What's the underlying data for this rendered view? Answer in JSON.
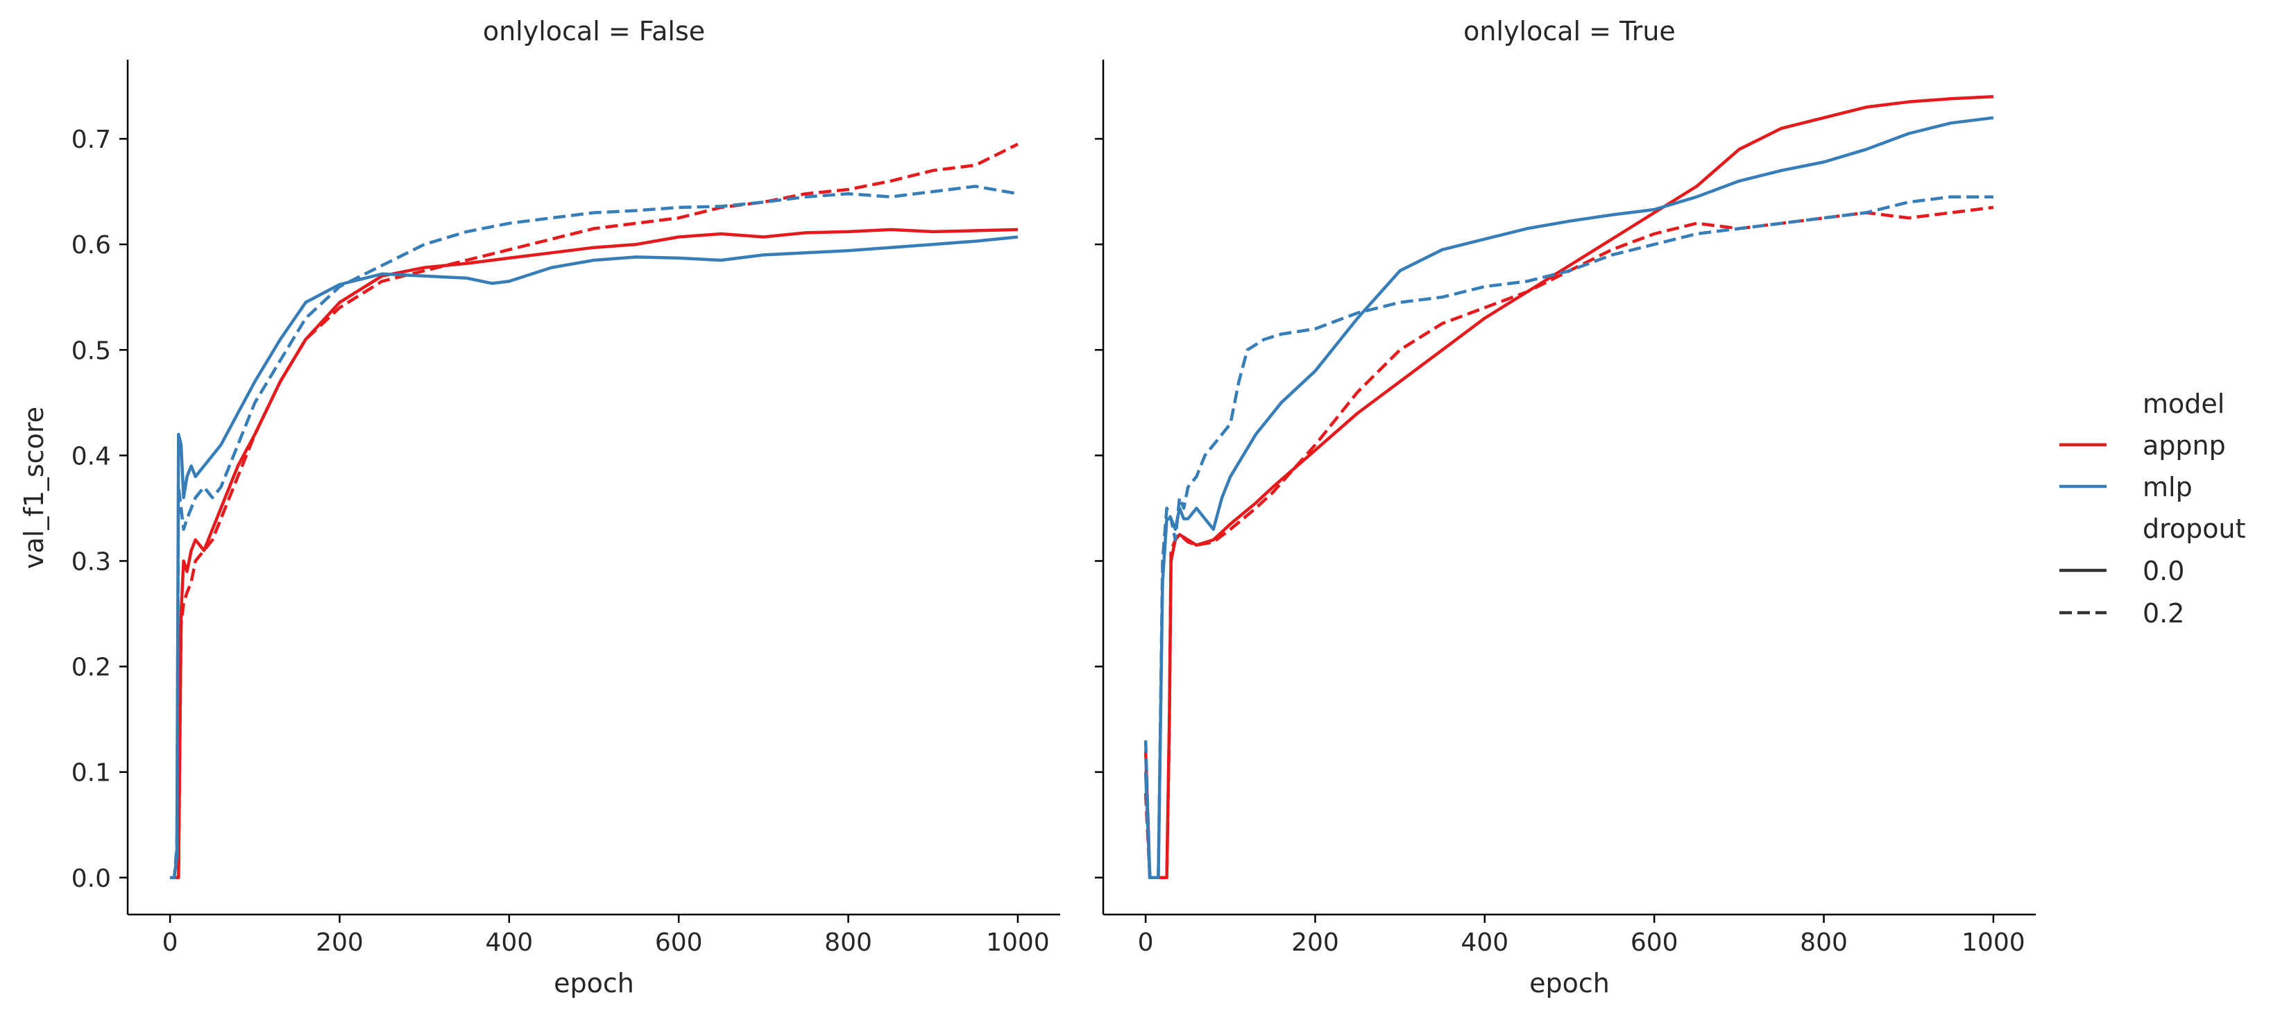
{
  "chart_data": [
    {
      "type": "line",
      "title": "onlylocal = False",
      "xlabel": "epoch",
      "ylabel": "val_f1_score",
      "xlim": [
        -50,
        1050
      ],
      "ylim": [
        -0.035,
        0.775
      ],
      "xticks": [
        0,
        200,
        400,
        600,
        800,
        1000
      ],
      "xtick_labels": [
        "0",
        "200",
        "400",
        "600",
        "800",
        "1000"
      ],
      "yticks": [
        0.0,
        0.1,
        0.2,
        0.3,
        0.4,
        0.5,
        0.6,
        0.7
      ],
      "ytick_labels": [
        "0.0",
        "0.1",
        "0.2",
        "0.3",
        "0.4",
        "0.5",
        "0.6",
        "0.7"
      ],
      "grid": false,
      "series": [
        {
          "name": "appnp",
          "dropout": "0.0",
          "color": "#e41a1c",
          "dash": "solid",
          "x": [
            0,
            8,
            10,
            13,
            16,
            20,
            25,
            30,
            40,
            50,
            60,
            80,
            100,
            130,
            160,
            200,
            250,
            300,
            350,
            400,
            450,
            500,
            550,
            600,
            650,
            700,
            750,
            800,
            850,
            900,
            950,
            1000
          ],
          "y": [
            0.0,
            0.0,
            0.0,
            0.25,
            0.3,
            0.29,
            0.31,
            0.32,
            0.31,
            0.33,
            0.35,
            0.39,
            0.42,
            0.47,
            0.51,
            0.545,
            0.57,
            0.578,
            0.582,
            0.587,
            0.592,
            0.597,
            0.6,
            0.607,
            0.61,
            0.607,
            0.611,
            0.612,
            0.614,
            0.612,
            0.613,
            0.614
          ]
        },
        {
          "name": "appnp",
          "dropout": "0.2",
          "color": "#e41a1c",
          "dash": "dashed",
          "x": [
            0,
            8,
            10,
            13,
            16,
            20,
            25,
            30,
            40,
            50,
            60,
            80,
            100,
            130,
            160,
            200,
            250,
            300,
            350,
            400,
            450,
            500,
            550,
            600,
            650,
            700,
            750,
            800,
            850,
            900,
            950,
            1000
          ],
          "y": [
            0.0,
            0.0,
            0.0,
            0.24,
            0.26,
            0.27,
            0.28,
            0.3,
            0.31,
            0.32,
            0.34,
            0.38,
            0.42,
            0.47,
            0.51,
            0.54,
            0.565,
            0.575,
            0.585,
            0.595,
            0.605,
            0.615,
            0.62,
            0.625,
            0.635,
            0.64,
            0.648,
            0.652,
            0.66,
            0.67,
            0.675,
            0.695
          ]
        },
        {
          "name": "mlp",
          "dropout": "0.0",
          "color": "#377eb8",
          "dash": "solid",
          "x": [
            0,
            5,
            8,
            10,
            13,
            16,
            20,
            25,
            30,
            40,
            50,
            60,
            80,
            100,
            130,
            160,
            200,
            250,
            300,
            350,
            380,
            400,
            450,
            500,
            550,
            600,
            650,
            700,
            750,
            800,
            850,
            900,
            950,
            1000
          ],
          "y": [
            0.0,
            0.0,
            0.02,
            0.42,
            0.41,
            0.36,
            0.38,
            0.39,
            0.38,
            0.39,
            0.4,
            0.41,
            0.44,
            0.47,
            0.51,
            0.545,
            0.562,
            0.572,
            0.57,
            0.568,
            0.563,
            0.565,
            0.578,
            0.585,
            0.588,
            0.587,
            0.585,
            0.59,
            0.592,
            0.594,
            0.597,
            0.6,
            0.603,
            0.607
          ]
        },
        {
          "name": "mlp",
          "dropout": "0.2",
          "color": "#377eb8",
          "dash": "dashed",
          "x": [
            0,
            5,
            8,
            10,
            13,
            16,
            20,
            25,
            30,
            40,
            50,
            60,
            80,
            100,
            130,
            160,
            200,
            250,
            300,
            350,
            400,
            450,
            500,
            550,
            600,
            650,
            700,
            750,
            800,
            850,
            900,
            950,
            1000
          ],
          "y": [
            0.0,
            0.0,
            0.03,
            0.37,
            0.35,
            0.33,
            0.34,
            0.35,
            0.36,
            0.37,
            0.36,
            0.37,
            0.41,
            0.45,
            0.49,
            0.53,
            0.56,
            0.58,
            0.6,
            0.612,
            0.62,
            0.625,
            0.63,
            0.632,
            0.635,
            0.636,
            0.64,
            0.645,
            0.648,
            0.645,
            0.65,
            0.655,
            0.648
          ]
        }
      ]
    },
    {
      "type": "line",
      "title": "onlylocal = True",
      "xlabel": "epoch",
      "ylabel": "",
      "xlim": [
        -50,
        1050
      ],
      "ylim": [
        -0.035,
        0.775
      ],
      "xticks": [
        0,
        200,
        400,
        600,
        800,
        1000
      ],
      "xtick_labels": [
        "0",
        "200",
        "400",
        "600",
        "800",
        "1000"
      ],
      "yticks": [
        0.0,
        0.1,
        0.2,
        0.3,
        0.4,
        0.5,
        0.6,
        0.7
      ],
      "ytick_labels": [
        "",
        "",
        "",
        "",
        "",
        "",
        "",
        ""
      ],
      "grid": false,
      "series": [
        {
          "name": "appnp",
          "dropout": "0.0",
          "color": "#e41a1c",
          "dash": "solid",
          "x": [
            0,
            5,
            8,
            15,
            25,
            28,
            30,
            35,
            40,
            50,
            60,
            80,
            100,
            130,
            150,
            200,
            250,
            300,
            350,
            400,
            450,
            500,
            550,
            600,
            650,
            700,
            750,
            800,
            850,
            900,
            950,
            1000
          ],
          "y": [
            0.12,
            0.0,
            0.0,
            0.0,
            0.0,
            0.15,
            0.3,
            0.32,
            0.325,
            0.32,
            0.315,
            0.32,
            0.335,
            0.355,
            0.37,
            0.405,
            0.44,
            0.47,
            0.5,
            0.53,
            0.555,
            0.58,
            0.605,
            0.63,
            0.655,
            0.69,
            0.71,
            0.72,
            0.73,
            0.735,
            0.738,
            0.74
          ]
        },
        {
          "name": "appnp",
          "dropout": "0.2",
          "color": "#e41a1c",
          "dash": "dashed",
          "x": [
            0,
            5,
            8,
            15,
            25,
            28,
            30,
            35,
            40,
            50,
            60,
            80,
            100,
            130,
            150,
            200,
            250,
            300,
            350,
            400,
            450,
            500,
            550,
            600,
            650,
            700,
            750,
            800,
            850,
            900,
            950,
            1000
          ],
          "y": [
            0.08,
            0.0,
            0.0,
            0.0,
            0.0,
            0.14,
            0.31,
            0.32,
            0.325,
            0.318,
            0.315,
            0.318,
            0.33,
            0.35,
            0.365,
            0.41,
            0.46,
            0.5,
            0.525,
            0.54,
            0.555,
            0.575,
            0.595,
            0.61,
            0.62,
            0.615,
            0.62,
            0.625,
            0.63,
            0.625,
            0.63,
            0.635
          ]
        },
        {
          "name": "mlp",
          "dropout": "0.0",
          "color": "#377eb8",
          "dash": "solid",
          "x": [
            0,
            5,
            8,
            15,
            20,
            25,
            30,
            35,
            40,
            45,
            50,
            60,
            70,
            80,
            90,
            100,
            130,
            160,
            200,
            250,
            300,
            350,
            400,
            450,
            500,
            550,
            600,
            650,
            700,
            750,
            800,
            850,
            900,
            950,
            1000
          ],
          "y": [
            0.1,
            0.0,
            0.0,
            0.0,
            0.28,
            0.34,
            0.34,
            0.33,
            0.35,
            0.34,
            0.34,
            0.35,
            0.34,
            0.33,
            0.36,
            0.38,
            0.42,
            0.45,
            0.48,
            0.53,
            0.575,
            0.595,
            0.605,
            0.615,
            0.622,
            0.628,
            0.633,
            0.645,
            0.66,
            0.67,
            0.678,
            0.69,
            0.705,
            0.715,
            0.72
          ]
        },
        {
          "name": "mlp",
          "dropout": "0.2",
          "color": "#377eb8",
          "dash": "dashed",
          "x": [
            0,
            5,
            8,
            15,
            20,
            25,
            30,
            35,
            40,
            45,
            50,
            60,
            70,
            80,
            90,
            100,
            110,
            120,
            140,
            160,
            200,
            250,
            300,
            350,
            400,
            450,
            500,
            550,
            600,
            650,
            700,
            750,
            800,
            850,
            900,
            950,
            1000
          ],
          "y": [
            0.13,
            0.0,
            0.0,
            0.0,
            0.3,
            0.35,
            0.34,
            0.32,
            0.36,
            0.35,
            0.37,
            0.38,
            0.4,
            0.41,
            0.42,
            0.43,
            0.47,
            0.5,
            0.51,
            0.515,
            0.52,
            0.535,
            0.545,
            0.55,
            0.56,
            0.565,
            0.575,
            0.59,
            0.6,
            0.61,
            0.615,
            0.62,
            0.625,
            0.63,
            0.64,
            0.645,
            0.645
          ]
        }
      ]
    }
  ],
  "legend": {
    "position": "right",
    "model_title": "model",
    "model_items": [
      {
        "label": "appnp",
        "color": "#e41a1c"
      },
      {
        "label": "mlp",
        "color": "#377eb8"
      }
    ],
    "dropout_title": "dropout",
    "dropout_items": [
      {
        "label": "0.0",
        "dash": "solid"
      },
      {
        "label": "0.2",
        "dash": "dashed"
      }
    ]
  }
}
